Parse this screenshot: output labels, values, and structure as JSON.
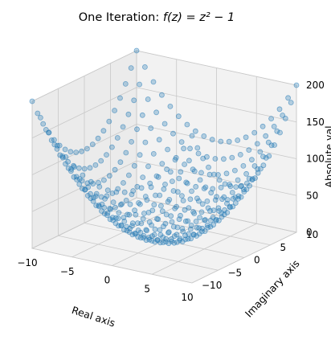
{
  "chart_data": {
    "type": "scatter",
    "title_prefix": "One Iteration: ",
    "title_math": "f(z) = z² − 1",
    "xlabel": "Real axis",
    "ylabel": "Imaginary axis",
    "zlabel": "Absolute val",
    "x_ticks": [
      -10,
      -5,
      0,
      5,
      10
    ],
    "y_ticks": [
      -10,
      -5,
      0,
      5,
      10
    ],
    "z_ticks": [
      0,
      50,
      100,
      150,
      200
    ],
    "xlim": [
      -10,
      10
    ],
    "ylim": [
      -10,
      10
    ],
    "zlim": [
      0,
      200
    ],
    "grid": true,
    "marker_color": "#1f77b4",
    "marker_alpha": 0.3,
    "series": [
      {
        "real_values": [
          -10,
          -8.95,
          -7.89,
          -6.84,
          -5.79,
          -4.74,
          -3.68,
          -2.63,
          -1.58,
          -0.53,
          0.53,
          1.58,
          2.63,
          3.68,
          4.74,
          5.79,
          6.84,
          7.89,
          8.95,
          10
        ],
        "imaginary_values": [
          -10,
          -8.95,
          -7.89,
          -6.84,
          -5.79,
          -4.74,
          -3.68,
          -2.63,
          -1.58,
          -0.53,
          0.53,
          1.58,
          2.63,
          3.68,
          4.74,
          5.79,
          6.84,
          7.89,
          8.95,
          10
        ],
        "z_formula": "|z^2 - 1|"
      }
    ]
  }
}
